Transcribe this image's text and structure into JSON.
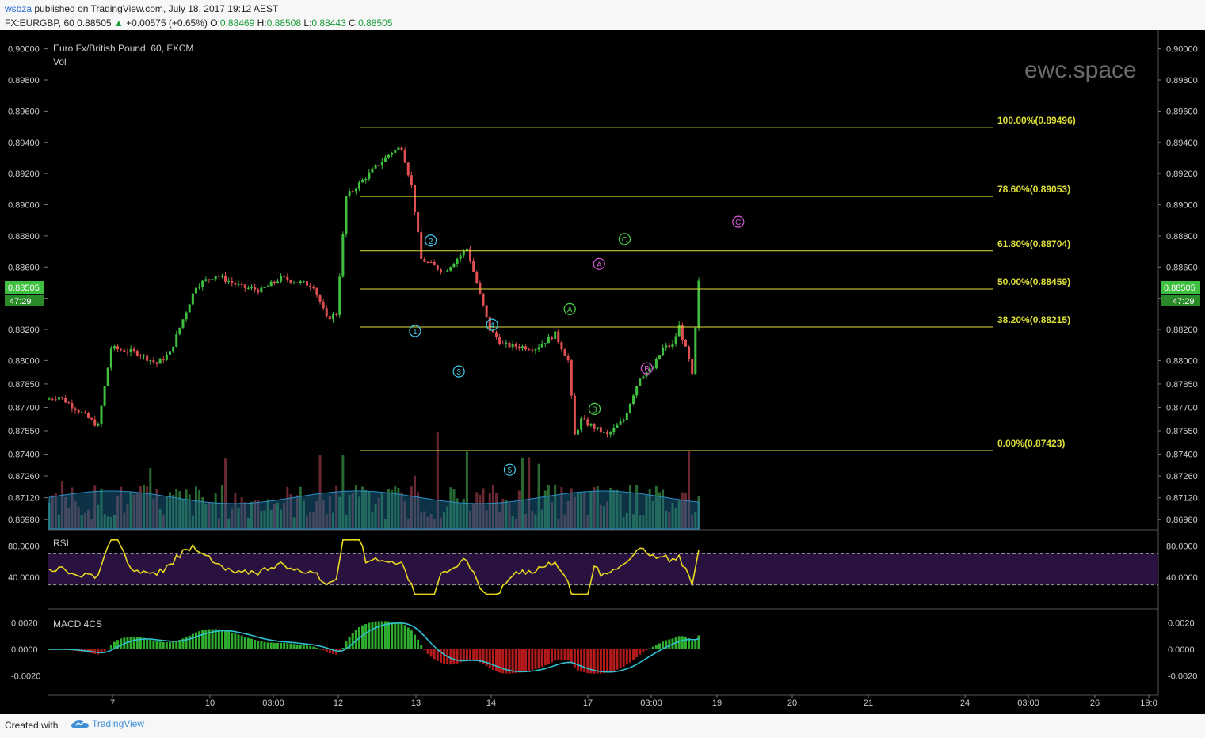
{
  "header": {
    "author": "wsbza",
    "published_text": "published on TradingView.com, July 18, 2017 19:12 AEST",
    "symbol": "FX:EURGBP, 60",
    "last": "0.88505",
    "change": "+0.00575 (+0.65%)",
    "open_label": "O:",
    "open": "0.88469",
    "high_label": "H:",
    "high": "0.88508",
    "low_label": "L:",
    "low": "0.88443",
    "close_label": "C:",
    "close": "0.88505"
  },
  "chart": {
    "title": "Euro Fx/British Pound, 60, FXCM",
    "vol_label": "Vol",
    "watermark": "ewc.space",
    "price_tag": "0.88505",
    "time_tag": "47:29",
    "colors": {
      "up": "#3fbf3f",
      "down": "#e05050",
      "fib": "#dede3a",
      "cyan": "#46c8e8",
      "green": "#4cd24c",
      "magenta": "#d85ad8"
    }
  },
  "chart_data": [
    {
      "type": "candlestick",
      "title": "Euro Fx/British Pound, 60, FXCM",
      "y_ticks": [
        "0.90000",
        "0.89800",
        "0.89600",
        "0.89400",
        "0.89200",
        "0.89000",
        "0.88800",
        "0.88600",
        "0.88400",
        "0.88200",
        "0.88000",
        "0.87850",
        "0.87700",
        "0.87550",
        "0.87400",
        "0.87260",
        "0.87120",
        "0.86980"
      ],
      "ylim": [
        0.8692,
        0.9012
      ],
      "x_ticks": [
        "7",
        "10",
        "03:00",
        "12",
        "13",
        "14",
        "17",
        "03:00",
        "19",
        "20",
        "21",
        "24",
        "03:00",
        "26",
        "19:0"
      ],
      "price_path": [
        [
          0.8775,
          0
        ],
        [
          0.8777,
          0.02
        ],
        [
          0.8768,
          0.05
        ],
        [
          0.8758,
          0.08
        ],
        [
          0.8808,
          0.1
        ],
        [
          0.8805,
          0.14
        ],
        [
          0.8798,
          0.17
        ],
        [
          0.8805,
          0.19
        ],
        [
          0.8848,
          0.23
        ],
        [
          0.8855,
          0.26
        ],
        [
          0.8847,
          0.3
        ],
        [
          0.8845,
          0.33
        ],
        [
          0.8853,
          0.36
        ],
        [
          0.8848,
          0.41
        ],
        [
          0.8827,
          0.43
        ],
        [
          0.883,
          0.445
        ],
        [
          0.8905,
          0.46
        ],
        [
          0.8922,
          0.5
        ],
        [
          0.8934,
          0.53
        ],
        [
          0.8937,
          0.545
        ],
        [
          0.8912,
          0.56
        ],
        [
          0.8865,
          0.575
        ],
        [
          0.8857,
          0.61
        ],
        [
          0.8872,
          0.645
        ],
        [
          0.8842,
          0.665
        ],
        [
          0.882,
          0.68
        ],
        [
          0.881,
          0.7
        ],
        [
          0.8808,
          0.75
        ],
        [
          0.8817,
          0.78
        ],
        [
          0.88,
          0.8
        ],
        [
          0.8752,
          0.81
        ],
        [
          0.8762,
          0.82
        ],
        [
          0.8752,
          0.86
        ],
        [
          0.8762,
          0.885
        ],
        [
          0.879,
          0.91
        ],
        [
          0.8795,
          0.93
        ],
        [
          0.8808,
          0.945
        ],
        [
          0.881,
          0.96
        ],
        [
          0.8822,
          0.97
        ],
        [
          0.88,
          0.985
        ],
        [
          0.879,
          0.99
        ],
        [
          0.885,
          1
        ]
      ],
      "fib_levels": [
        {
          "label": "100.00%(0.89496)",
          "value": 0.89496
        },
        {
          "label": "78.60%(0.89053)",
          "value": 0.89053
        },
        {
          "label": "61.80%(0.88704)",
          "value": 0.88704
        },
        {
          "label": "50.00%(0.88459)",
          "value": 0.88459
        },
        {
          "label": "38.20%(0.88215)",
          "value": 0.88215
        },
        {
          "label": "0.00%(0.87423)",
          "value": 0.87423
        }
      ],
      "wave_labels": [
        {
          "text": "1",
          "color": "cyan",
          "price": 0.8819,
          "x_rel": 0.563
        },
        {
          "text": "2",
          "color": "cyan",
          "price": 0.8877,
          "x_rel": 0.587
        },
        {
          "text": "3",
          "color": "cyan",
          "price": 0.8793,
          "x_rel": 0.63
        },
        {
          "text": "4",
          "color": "cyan",
          "price": 0.8823,
          "x_rel": 0.681
        },
        {
          "text": "5",
          "color": "cyan",
          "price": 0.873,
          "x_rel": 0.708
        },
        {
          "text": "A",
          "color": "green",
          "price": 0.8833,
          "x_rel": 0.8
        },
        {
          "text": "B",
          "color": "green",
          "price": 0.8769,
          "x_rel": 0.838
        },
        {
          "text": "C",
          "color": "green",
          "price": 0.8878,
          "x_rel": 0.884
        },
        {
          "text": "A",
          "color": "magenta",
          "price": 0.8862,
          "x_rel": 0.845
        },
        {
          "text": "B",
          "color": "magenta",
          "price": 0.8795,
          "x_rel": 0.918
        },
        {
          "text": "C",
          "color": "magenta",
          "price": 0.8889,
          "x_rel": 1.058
        }
      ]
    },
    {
      "type": "line",
      "title": "RSI",
      "y_ticks": [
        "80.0000",
        "40.0000"
      ],
      "band": [
        30,
        70
      ]
    },
    {
      "type": "bar",
      "title": "MACD 4CS",
      "y_ticks": [
        "0.0020",
        "0.0000",
        "-0.0020"
      ]
    }
  ],
  "footer": {
    "created_with": "Created with",
    "brand": "TradingView"
  }
}
